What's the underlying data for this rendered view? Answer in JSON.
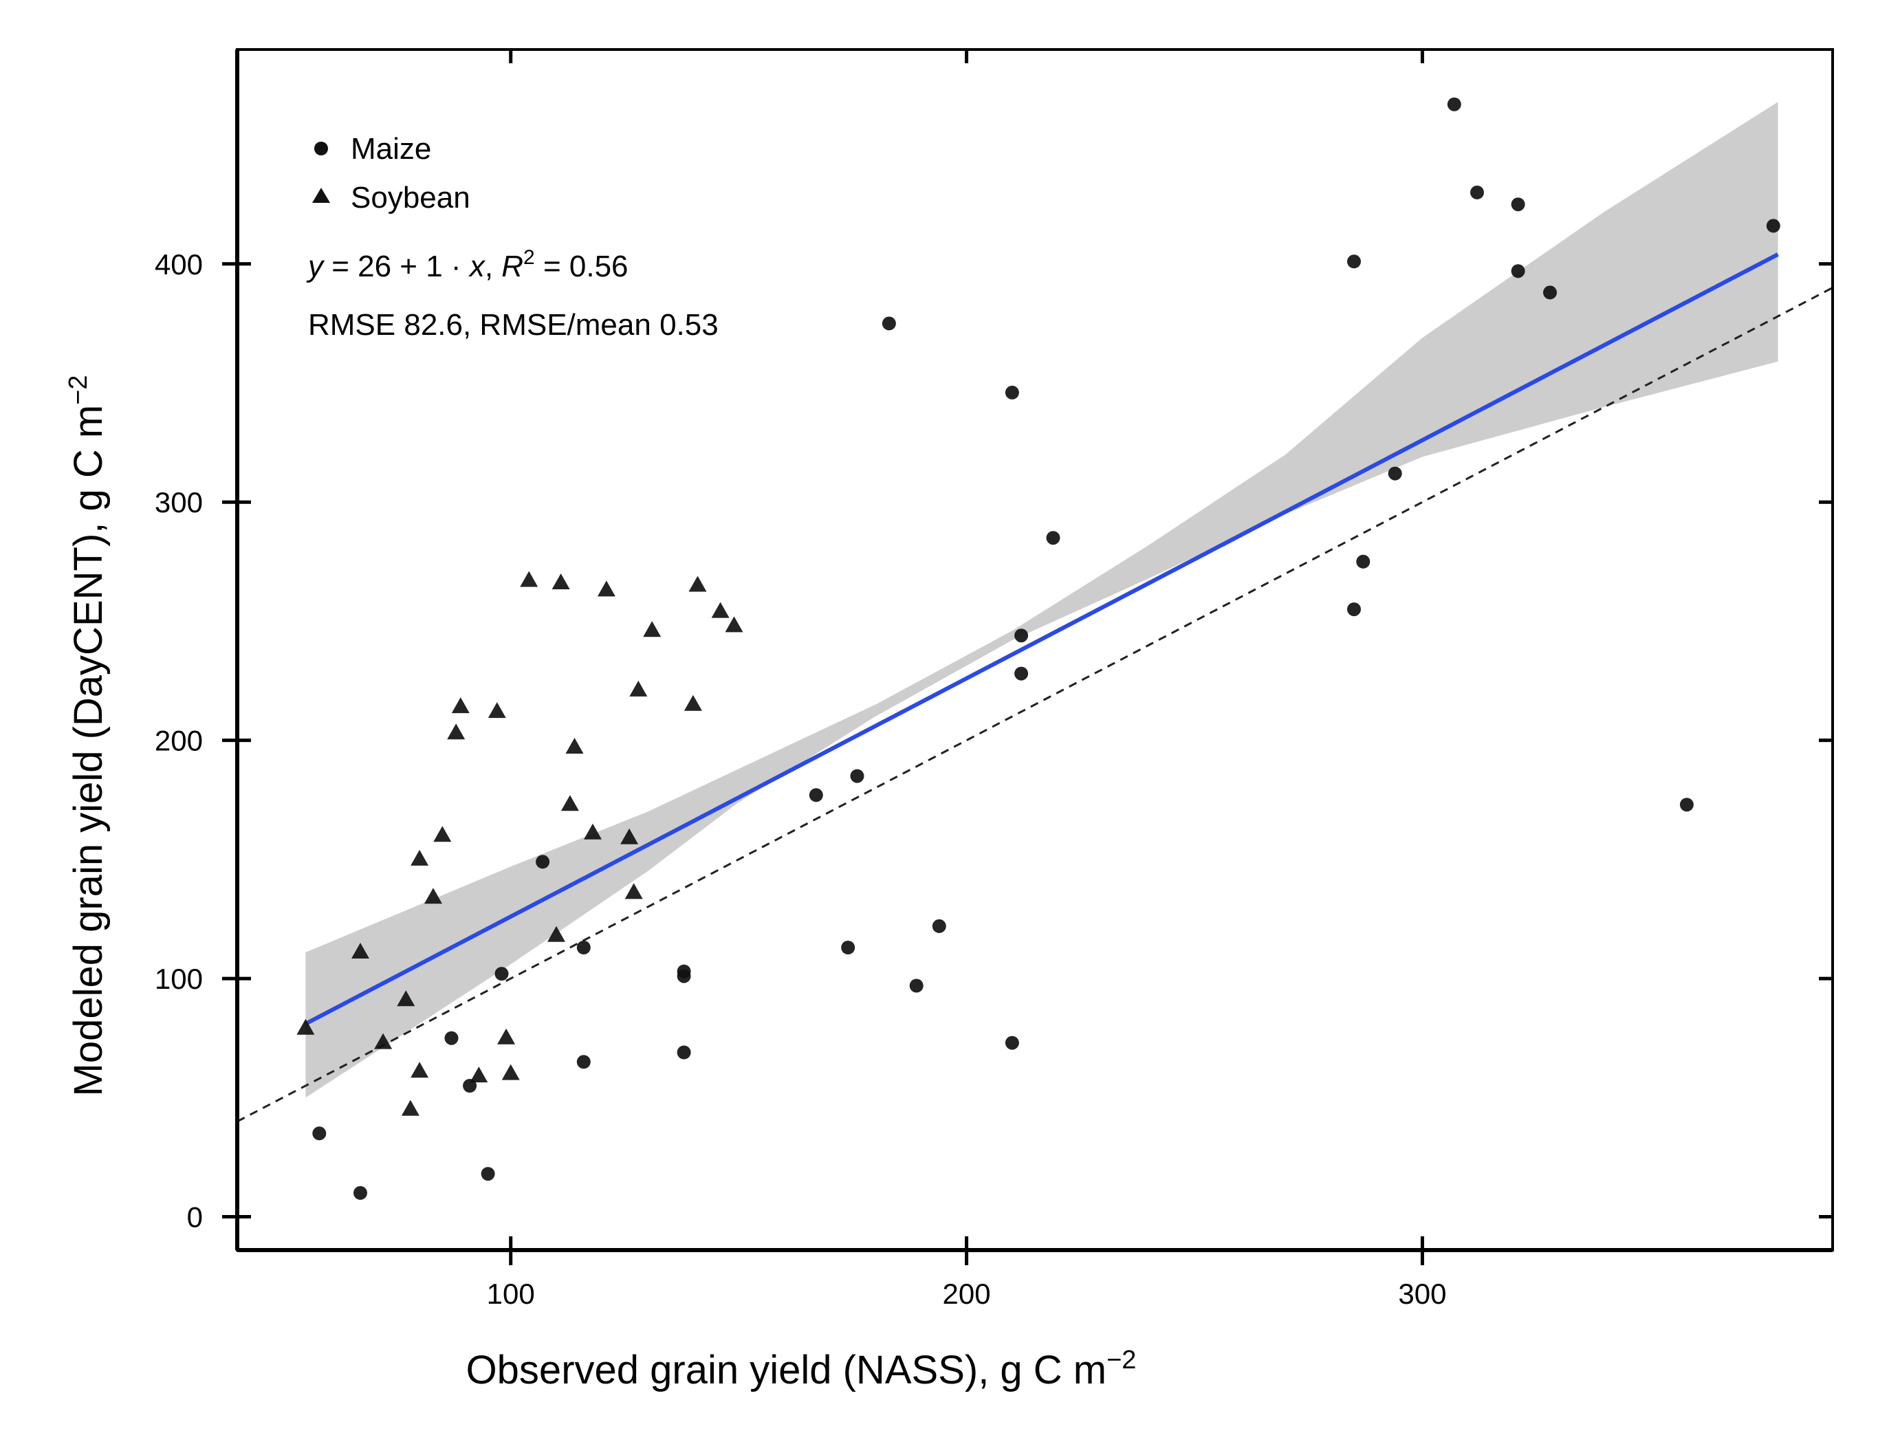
{
  "chart_data": {
    "type": "scatter",
    "xlabel_main": "Observed grain yield (NASS), g C m",
    "xlabel_sup": "−2",
    "ylabel_main": "Modeled grain yield (DayCENT), g C m",
    "ylabel_sup": "−2",
    "xlim": [
      40,
      390
    ],
    "ylim": [
      -14,
      490
    ],
    "x_ticks": [
      100,
      200,
      300
    ],
    "y_ticks": [
      0,
      100,
      200,
      300,
      400
    ],
    "x_tick_labels": [
      "100",
      "200",
      "300"
    ],
    "y_tick_labels": [
      "0",
      "100",
      "200",
      "300",
      "400"
    ],
    "grid": false,
    "legend_position": "top-left",
    "legend": [
      {
        "label": "Maize",
        "marker": "circle"
      },
      {
        "label": "Soybean",
        "marker": "triangle"
      }
    ],
    "annotation": {
      "eq_y": "y",
      "eq_mid": " = 26 + 1 · ",
      "eq_x": "x",
      "eq_sep": ",  ",
      "eq_R": "R",
      "eq_R_sup": "2",
      "eq_R_val": " = 0.56",
      "rmse": "RMSE 82.6, RMSE/mean 0.53"
    },
    "regression": {
      "intercept": 26,
      "slope": 1,
      "x_range": [
        55,
        378
      ],
      "color": "#2a49e8"
    },
    "confidence_band": {
      "color": "#cdcdcd",
      "lower": [
        [
          55,
          50
        ],
        [
          100,
          106
        ],
        [
          130,
          145
        ],
        [
          150,
          174
        ],
        [
          180,
          210
        ],
        [
          210,
          242
        ],
        [
          240,
          268
        ],
        [
          270,
          295
        ],
        [
          300,
          319
        ],
        [
          340,
          340
        ],
        [
          378,
          359
        ]
      ],
      "upper": [
        [
          55,
          111
        ],
        [
          100,
          147
        ],
        [
          130,
          170
        ],
        [
          150,
          188
        ],
        [
          180,
          215
        ],
        [
          210,
          246
        ],
        [
          240,
          282
        ],
        [
          270,
          320
        ],
        [
          300,
          369
        ],
        [
          340,
          422
        ],
        [
          378,
          468
        ]
      ]
    },
    "identity_line": {
      "style": "dashed",
      "x_range": [
        40,
        390
      ]
    },
    "series": [
      {
        "name": "Maize",
        "marker": "circle",
        "points": [
          [
            58,
            35
          ],
          [
            67,
            10
          ],
          [
            87,
            75
          ],
          [
            91,
            55
          ],
          [
            95,
            18
          ],
          [
            98,
            102
          ],
          [
            107,
            149
          ],
          [
            116,
            113
          ],
          [
            116,
            65
          ],
          [
            138,
            103
          ],
          [
            138,
            101
          ],
          [
            138,
            69
          ],
          [
            167,
            177
          ],
          [
            174,
            113
          ],
          [
            176,
            185
          ],
          [
            183,
            375
          ],
          [
            189,
            97
          ],
          [
            194,
            122
          ],
          [
            210,
            346
          ],
          [
            210,
            73
          ],
          [
            212,
            244
          ],
          [
            212,
            228
          ],
          [
            219,
            285
          ],
          [
            285,
            401
          ],
          [
            285,
            255
          ],
          [
            287,
            275
          ],
          [
            294,
            312
          ],
          [
            307,
            467
          ],
          [
            312,
            430
          ],
          [
            321,
            425
          ],
          [
            321,
            397
          ],
          [
            328,
            388
          ],
          [
            358,
            173
          ],
          [
            377,
            416
          ]
        ]
      },
      {
        "name": "Soybean",
        "marker": "triangle",
        "points": [
          [
            55,
            79
          ],
          [
            67,
            111
          ],
          [
            72,
            73
          ],
          [
            77,
            91
          ],
          [
            78,
            45
          ],
          [
            80,
            150
          ],
          [
            80,
            61
          ],
          [
            83,
            134
          ],
          [
            85,
            160
          ],
          [
            88,
            203
          ],
          [
            89,
            214
          ],
          [
            93,
            59
          ],
          [
            97,
            212
          ],
          [
            99,
            75
          ],
          [
            100,
            60
          ],
          [
            104,
            267
          ],
          [
            110,
            118
          ],
          [
            111,
            266
          ],
          [
            113,
            173
          ],
          [
            114,
            197
          ],
          [
            118,
            161
          ],
          [
            121,
            263
          ],
          [
            126,
            159
          ],
          [
            127,
            136
          ],
          [
            128,
            221
          ],
          [
            131,
            246
          ],
          [
            140,
            215
          ],
          [
            141,
            265
          ],
          [
            146,
            254
          ],
          [
            149,
            248
          ]
        ]
      }
    ]
  }
}
